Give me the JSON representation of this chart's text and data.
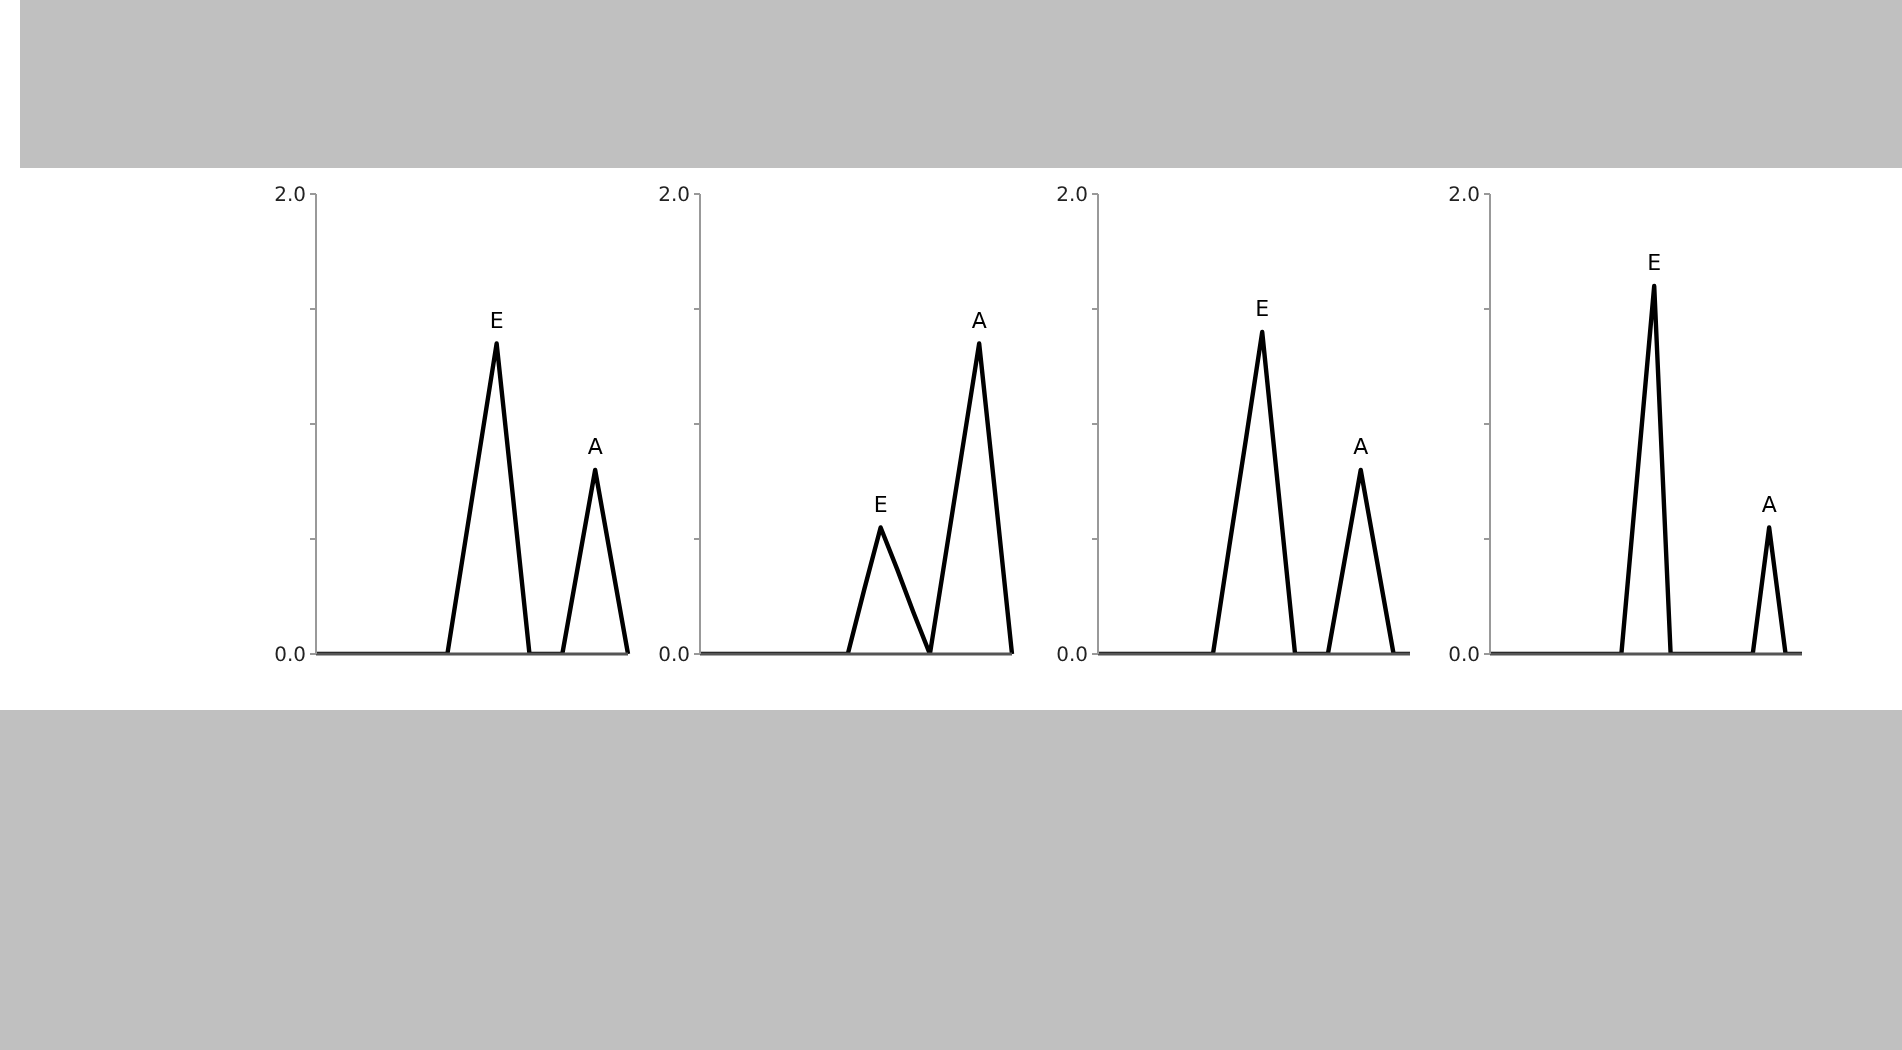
{
  "chart_data": [
    {
      "type": "line",
      "categories": [
        null,
        null,
        null,
        null,
        null,
        null,
        null,
        null,
        null,
        null,
        null,
        null,
        null,
        null,
        null,
        null,
        null,
        null,
        null,
        null
      ],
      "values": [
        0,
        0,
        0,
        0,
        0,
        0,
        0,
        0,
        0,
        0.45,
        0.9,
        1.35,
        0.68,
        0,
        0,
        0,
        0.4,
        0.8,
        0.4,
        0
      ],
      "color": "#000000",
      "ylim": [
        0,
        2
      ],
      "yticks": [
        {
          "value": 0,
          "label": "0.0"
        },
        {
          "value": 0.5,
          "label": null
        },
        {
          "value": 1,
          "label": null
        },
        {
          "value": 1.5,
          "label": null
        },
        {
          "value": 2,
          "label": "2.0"
        }
      ],
      "tick_labels": "y",
      "marker": "none",
      "annotations": [
        "E",
        "A"
      ]
    },
    {
      "type": "line",
      "categories": [
        null,
        null,
        null,
        null,
        null,
        null,
        null,
        null,
        null,
        null,
        null,
        null,
        null,
        null,
        null,
        null,
        null,
        null,
        null,
        null
      ],
      "values": [
        0,
        0,
        0,
        0,
        0,
        0,
        0,
        0,
        0,
        0,
        0.28,
        0.55,
        0.37,
        0.18,
        0,
        0.45,
        0.9,
        1.35,
        0.68,
        0
      ],
      "color": "#000000",
      "ylim": [
        0,
        2
      ],
      "yticks": [
        {
          "value": 0,
          "label": "0.0"
        },
        {
          "value": 0.5,
          "label": null
        },
        {
          "value": 1,
          "label": null
        },
        {
          "value": 1.5,
          "label": null
        },
        {
          "value": 2,
          "label": "2.0"
        }
      ],
      "tick_labels": "y",
      "marker": "none",
      "annotations": [
        "E",
        "A"
      ]
    },
    {
      "type": "line",
      "categories": [
        null,
        null,
        null,
        null,
        null,
        null,
        null,
        null,
        null,
        null,
        null,
        null,
        null,
        null,
        null,
        null,
        null,
        null,
        null,
        null
      ],
      "values": [
        0,
        0,
        0,
        0,
        0,
        0,
        0,
        0,
        0.47,
        0.93,
        1.4,
        0.7,
        0,
        0,
        0,
        0.4,
        0.8,
        0.4,
        0,
        0
      ],
      "color": "#000000",
      "ylim": [
        0,
        2
      ],
      "yticks": [
        {
          "value": 0,
          "label": "0.0"
        },
        {
          "value": 0.5,
          "label": null
        },
        {
          "value": 1,
          "label": null
        },
        {
          "value": 1.5,
          "label": null
        },
        {
          "value": 2,
          "label": "2.0"
        }
      ],
      "tick_labels": "y",
      "marker": "none",
      "annotations": [
        "E",
        "A"
      ]
    },
    {
      "type": "line",
      "categories": [
        null,
        null,
        null,
        null,
        null,
        null,
        null,
        null,
        null,
        null,
        null,
        null,
        null,
        null,
        null,
        null,
        null,
        null,
        null,
        null
      ],
      "values": [
        0,
        0,
        0,
        0,
        0,
        0,
        0,
        0,
        0,
        0.8,
        1.6,
        0,
        0,
        0,
        0,
        0,
        0,
        0.55,
        0,
        0
      ],
      "color": "#000000",
      "ylim": [
        0,
        2
      ],
      "yticks": [
        {
          "value": 0,
          "label": "0.0"
        },
        {
          "value": 0.5,
          "label": null
        },
        {
          "value": 1,
          "label": null
        },
        {
          "value": 1.5,
          "label": null
        },
        {
          "value": 2,
          "label": "2.0"
        }
      ],
      "tick_labels": "y",
      "marker": "none",
      "annotations": [
        "E",
        "A"
      ]
    }
  ]
}
